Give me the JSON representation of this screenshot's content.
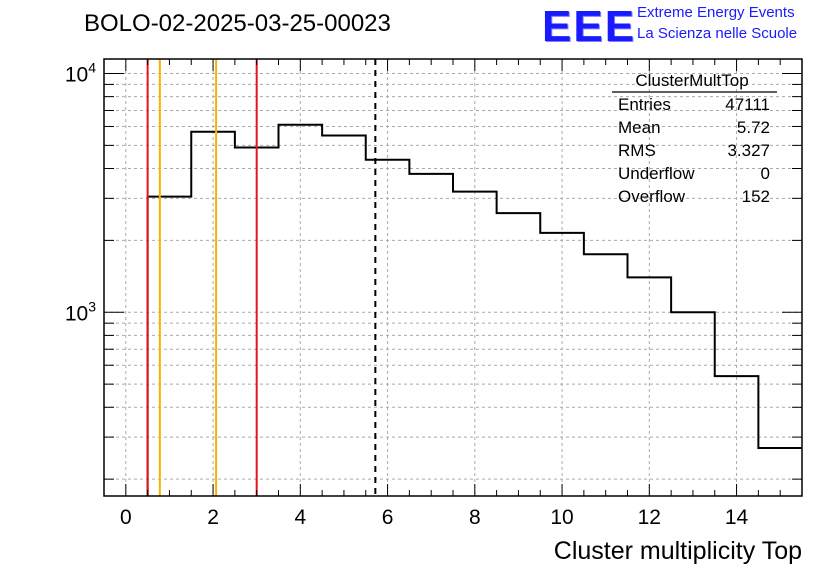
{
  "header": {
    "run_title": "BOLO-02-2025-03-25-00023",
    "logo_text": "EEE",
    "logo_line1": "Extreme Energy Events",
    "logo_line2": "La Scienza nelle Scuole"
  },
  "colors": {
    "logo": "#1a1aff",
    "histogram": "#000000",
    "cut_red": "#e8141e",
    "cut_orange": "#f5b400",
    "grid": "#aaaaaa"
  },
  "chart_data": {
    "type": "bar",
    "style": "step-histogram",
    "xlabel": "Cluster multiplicity Top",
    "ylabel": "",
    "xlim": [
      -0.5,
      15.5
    ],
    "ylim": [
      170,
      11500
    ],
    "log_y": true,
    "grid": true,
    "x_ticks": [
      0,
      2,
      4,
      6,
      8,
      10,
      12,
      14
    ],
    "y_tick_labels": [
      {
        "value": 1000,
        "base": "10",
        "exp": "3"
      },
      {
        "value": 10000,
        "base": "10",
        "exp": "4"
      }
    ],
    "bin_width": 1,
    "bin_centers": [
      0,
      1,
      2,
      3,
      4,
      5,
      6,
      7,
      8,
      9,
      10,
      11,
      12,
      13,
      14,
      15
    ],
    "values": [
      0,
      3050,
      5700,
      4900,
      6100,
      5500,
      4350,
      3800,
      3200,
      2600,
      2150,
      1750,
      1400,
      1000,
      540,
      270
    ],
    "vertical_lines": [
      {
        "x": 0.5,
        "color": "red",
        "style": "solid"
      },
      {
        "x": 0.78,
        "color": "orange",
        "style": "solid"
      },
      {
        "x": 2.07,
        "color": "orange",
        "style": "solid"
      },
      {
        "x": 3.0,
        "color": "red",
        "style": "solid"
      },
      {
        "x": 5.72,
        "color": "black",
        "style": "dashed"
      }
    ],
    "stats_box": {
      "title": "ClusterMultTop",
      "rows": [
        {
          "label": "Entries",
          "value": "47111"
        },
        {
          "label": "Mean",
          "value": "5.72"
        },
        {
          "label": "RMS",
          "value": "3.327"
        },
        {
          "label": "Underflow",
          "value": "0"
        },
        {
          "label": "Overflow",
          "value": "152"
        }
      ]
    }
  }
}
